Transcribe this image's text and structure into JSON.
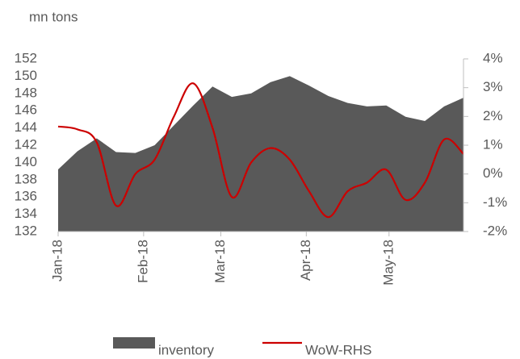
{
  "chart_data": {
    "type": "area-line",
    "y_axis_label": "mn tons",
    "x": [
      0,
      7,
      14,
      21,
      28,
      35,
      42,
      49,
      56,
      63,
      70,
      77,
      84,
      91,
      98,
      105,
      112,
      119,
      126,
      133,
      140,
      147
    ],
    "xlim": [
      0,
      147
    ],
    "xticks": [
      {
        "value": 0,
        "label": "Jan-18"
      },
      {
        "value": 31,
        "label": "Feb-18"
      },
      {
        "value": 59,
        "label": "Mar-18"
      },
      {
        "value": 90,
        "label": "Apr-18"
      },
      {
        "value": 120,
        "label": "May-18"
      }
    ],
    "ylim": [
      132,
      152
    ],
    "yticks": [
      132,
      134,
      136,
      138,
      140,
      142,
      144,
      146,
      148,
      150,
      152
    ],
    "y2lim": [
      -2,
      4
    ],
    "y2ticks": [
      {
        "value": -2,
        "label": "-2%"
      },
      {
        "value": -1,
        "label": "-1%"
      },
      {
        "value": 0,
        "label": "0%"
      },
      {
        "value": 1,
        "label": "1%"
      },
      {
        "value": 2,
        "label": "2%"
      },
      {
        "value": 3,
        "label": "3%"
      },
      {
        "value": 4,
        "label": "4%"
      }
    ],
    "series": [
      {
        "name": "inventory",
        "kind": "area",
        "color": "#595959",
        "values": [
          139.2,
          141.3,
          142.8,
          141.2,
          141.1,
          142.0,
          144.3,
          146.6,
          148.8,
          147.6,
          148.0,
          149.3,
          150.0,
          148.9,
          147.7,
          146.9,
          146.5,
          146.6,
          145.3,
          144.8,
          146.5,
          147.5
        ]
      },
      {
        "name": "WoW-RHS",
        "kind": "line",
        "axis": "y2",
        "color": "#cc0000",
        "values": [
          1.65,
          1.55,
          1.1,
          -1.1,
          0.0,
          0.5,
          2.0,
          3.15,
          1.6,
          -0.8,
          0.4,
          0.9,
          0.5,
          -0.6,
          -1.5,
          -0.6,
          -0.3,
          0.15,
          -0.9,
          -0.3,
          1.2,
          0.7
        ]
      }
    ],
    "legend": "bottom"
  }
}
